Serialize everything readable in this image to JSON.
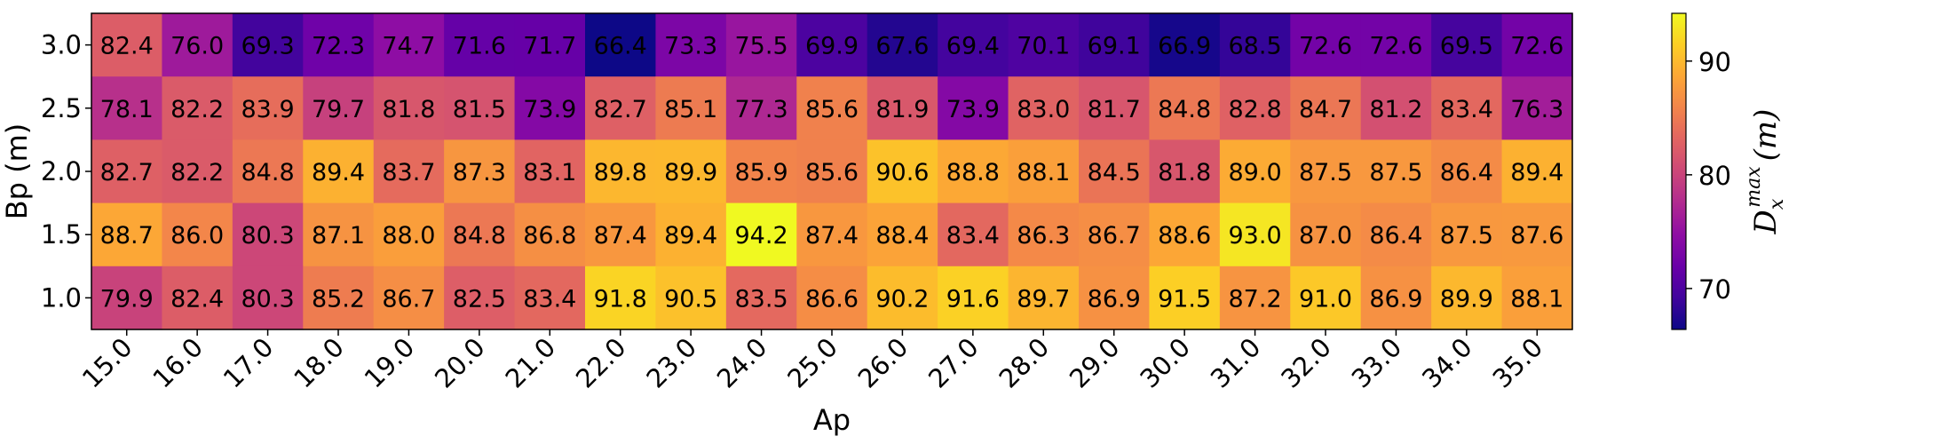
{
  "chart_data": {
    "type": "heatmap",
    "xlabel": "Ap",
    "ylabel": "Bp (m)",
    "x_categories": [
      "15.0",
      "16.0",
      "17.0",
      "18.0",
      "19.0",
      "20.0",
      "21.0",
      "22.0",
      "23.0",
      "24.0",
      "25.0",
      "26.0",
      "27.0",
      "28.0",
      "29.0",
      "30.0",
      "31.0",
      "32.0",
      "33.0",
      "34.0",
      "35.0"
    ],
    "y_categories": [
      "3.0",
      "2.5",
      "2.0",
      "1.5",
      "1.0"
    ],
    "values": [
      [
        82.4,
        76.0,
        69.3,
        72.3,
        74.7,
        71.6,
        71.7,
        66.4,
        73.3,
        75.5,
        69.9,
        67.6,
        69.4,
        70.1,
        69.1,
        66.9,
        68.5,
        72.6,
        72.6,
        69.5,
        72.6
      ],
      [
        78.1,
        82.2,
        83.9,
        79.7,
        81.8,
        81.5,
        73.9,
        82.7,
        85.1,
        77.3,
        85.6,
        81.9,
        73.9,
        83.0,
        81.7,
        84.8,
        82.8,
        84.7,
        81.2,
        83.4,
        76.3
      ],
      [
        82.7,
        82.2,
        84.8,
        89.4,
        83.7,
        87.3,
        83.1,
        89.8,
        89.9,
        85.9,
        85.6,
        90.6,
        88.8,
        88.1,
        84.5,
        81.8,
        89.0,
        87.5,
        87.5,
        86.4,
        89.4
      ],
      [
        88.7,
        86.0,
        80.3,
        87.1,
        88.0,
        84.8,
        86.8,
        87.4,
        89.4,
        94.2,
        87.4,
        88.4,
        83.4,
        86.3,
        86.7,
        88.6,
        93.0,
        87.0,
        86.4,
        87.5,
        87.6
      ],
      [
        79.9,
        82.4,
        80.3,
        85.2,
        86.7,
        82.5,
        83.4,
        91.8,
        90.5,
        83.5,
        86.6,
        90.2,
        91.6,
        89.7,
        86.9,
        91.5,
        87.2,
        91.0,
        86.9,
        89.9,
        88.1
      ]
    ],
    "colormap": "plasma",
    "vmin": 66.4,
    "vmax": 94.2,
    "colorbar": {
      "ticks": [
        "70",
        "80",
        "90"
      ],
      "label_base": "D",
      "label_sup": "max",
      "label_sub": "x",
      "label_suffix": "(m)"
    }
  }
}
